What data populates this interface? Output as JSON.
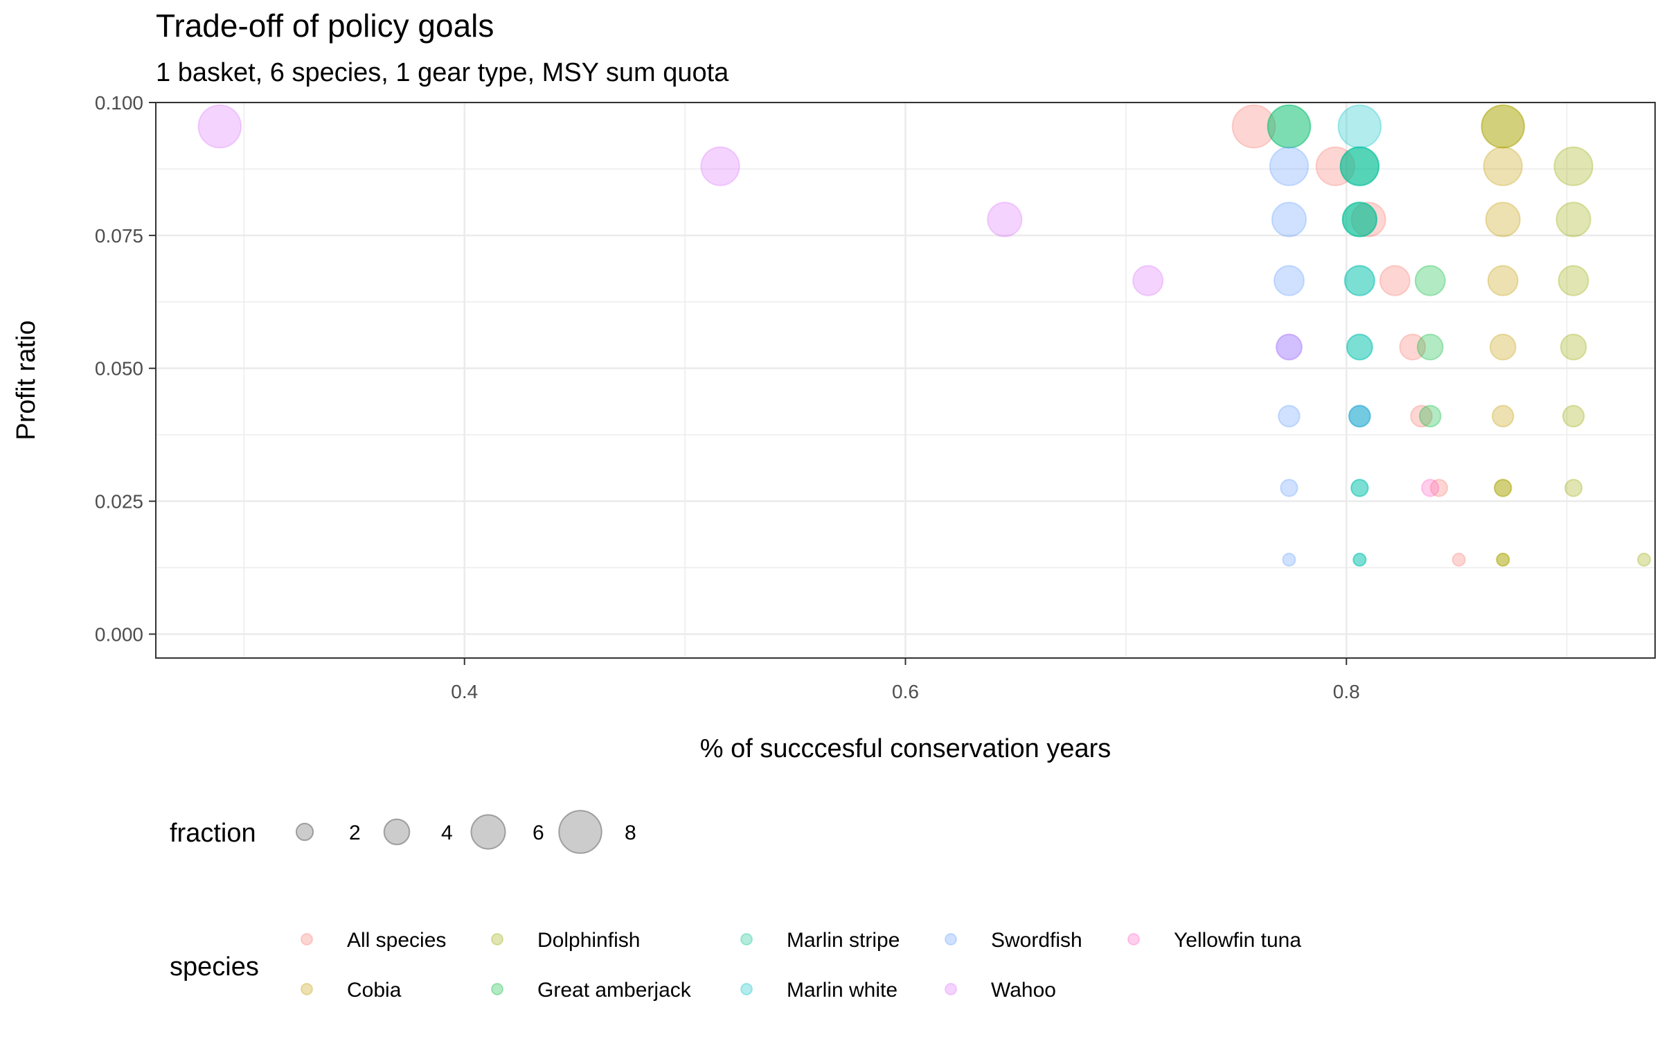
{
  "chart_data": {
    "type": "scatter",
    "title": "Trade-off of policy goals",
    "subtitle": "1 basket, 6 species, 1 gear type, MSY sum quota",
    "xlabel": "% of succcesful conservation years",
    "ylabel": "Profit ratio",
    "xlim": [
      0.26,
      0.94
    ],
    "ylim": [
      -0.0045,
      0.1
    ],
    "x_ticks": [
      0.4,
      0.6,
      0.8
    ],
    "x_tick_labels": [
      "0.4",
      "0.6",
      "0.8"
    ],
    "y_ticks": [
      0.0,
      0.025,
      0.05,
      0.075,
      0.1
    ],
    "y_tick_labels": [
      "0.000",
      "0.025",
      "0.050",
      "0.075",
      "0.100"
    ],
    "grid": true,
    "point_alpha": 0.3,
    "size_legend": {
      "title": "fraction",
      "values": [
        2,
        4,
        6,
        8
      ],
      "labels": [
        "2",
        "4",
        "6",
        "8"
      ]
    },
    "color_legend": {
      "title": "species",
      "placement": "bottom"
    },
    "series": [
      {
        "name": "All species",
        "color": "#F8766D",
        "points": [
          {
            "x": 0.758,
            "y": 0.0955,
            "fraction": 8
          },
          {
            "x": 0.795,
            "y": 0.088,
            "fraction": 7
          },
          {
            "x": 0.81,
            "y": 0.078,
            "fraction": 6
          },
          {
            "x": 0.822,
            "y": 0.0665,
            "fraction": 5
          },
          {
            "x": 0.83,
            "y": 0.054,
            "fraction": 4
          },
          {
            "x": 0.834,
            "y": 0.041,
            "fraction": 3
          },
          {
            "x": 0.842,
            "y": 0.0275,
            "fraction": 2
          },
          {
            "x": 0.851,
            "y": 0.014,
            "fraction": 1
          }
        ]
      },
      {
        "name": "Cobia",
        "color": "#C49A00",
        "points": [
          {
            "x": 0.871,
            "y": 0.0955,
            "fraction": 8
          },
          {
            "x": 0.871,
            "y": 0.088,
            "fraction": 7
          },
          {
            "x": 0.871,
            "y": 0.078,
            "fraction": 6
          },
          {
            "x": 0.871,
            "y": 0.0665,
            "fraction": 5
          },
          {
            "x": 0.871,
            "y": 0.054,
            "fraction": 4
          },
          {
            "x": 0.871,
            "y": 0.041,
            "fraction": 3
          },
          {
            "x": 0.871,
            "y": 0.0275,
            "fraction": 2
          },
          {
            "x": 0.871,
            "y": 0.014,
            "fraction": 1
          }
        ]
      },
      {
        "name": "Dolphinfish",
        "color": "#99A800",
        "points": [
          {
            "x": 0.871,
            "y": 0.0955,
            "fraction": 8
          },
          {
            "x": 0.903,
            "y": 0.088,
            "fraction": 7
          },
          {
            "x": 0.903,
            "y": 0.078,
            "fraction": 6
          },
          {
            "x": 0.903,
            "y": 0.0665,
            "fraction": 5
          },
          {
            "x": 0.903,
            "y": 0.054,
            "fraction": 4
          },
          {
            "x": 0.903,
            "y": 0.041,
            "fraction": 3
          },
          {
            "x": 0.871,
            "y": 0.0275,
            "fraction": 2
          },
          {
            "x": 0.903,
            "y": 0.0275,
            "fraction": 2
          },
          {
            "x": 0.871,
            "y": 0.014,
            "fraction": 1
          },
          {
            "x": 0.935,
            "y": 0.014,
            "fraction": 1
          }
        ]
      },
      {
        "name": "Great amberjack",
        "color": "#00BA38",
        "points": [
          {
            "x": 0.774,
            "y": 0.0955,
            "fraction": 8
          },
          {
            "x": 0.806,
            "y": 0.088,
            "fraction": 7
          },
          {
            "x": 0.806,
            "y": 0.078,
            "fraction": 6
          },
          {
            "x": 0.838,
            "y": 0.0665,
            "fraction": 5
          },
          {
            "x": 0.838,
            "y": 0.054,
            "fraction": 4
          },
          {
            "x": 0.838,
            "y": 0.041,
            "fraction": 3
          }
        ]
      },
      {
        "name": "Marlin stripe",
        "color": "#00C08B",
        "points": [
          {
            "x": 0.774,
            "y": 0.0955,
            "fraction": 8
          },
          {
            "x": 0.806,
            "y": 0.088,
            "fraction": 7
          },
          {
            "x": 0.806,
            "y": 0.078,
            "fraction": 6
          },
          {
            "x": 0.806,
            "y": 0.0665,
            "fraction": 5
          },
          {
            "x": 0.806,
            "y": 0.054,
            "fraction": 4
          },
          {
            "x": 0.806,
            "y": 0.041,
            "fraction": 3
          },
          {
            "x": 0.806,
            "y": 0.0275,
            "fraction": 2
          },
          {
            "x": 0.806,
            "y": 0.014,
            "fraction": 1
          }
        ]
      },
      {
        "name": "Marlin white",
        "color": "#00BFC4",
        "points": [
          {
            "x": 0.806,
            "y": 0.0955,
            "fraction": 8
          },
          {
            "x": 0.806,
            "y": 0.088,
            "fraction": 7
          },
          {
            "x": 0.806,
            "y": 0.078,
            "fraction": 6
          },
          {
            "x": 0.806,
            "y": 0.0665,
            "fraction": 5
          },
          {
            "x": 0.806,
            "y": 0.054,
            "fraction": 4
          },
          {
            "x": 0.806,
            "y": 0.041,
            "fraction": 3
          },
          {
            "x": 0.806,
            "y": 0.0275,
            "fraction": 2
          },
          {
            "x": 0.806,
            "y": 0.014,
            "fraction": 1
          }
        ]
      },
      {
        "name": "Swordfish",
        "color": "#619CFF",
        "points": [
          {
            "x": 0.774,
            "y": 0.088,
            "fraction": 7
          },
          {
            "x": 0.774,
            "y": 0.078,
            "fraction": 6
          },
          {
            "x": 0.774,
            "y": 0.0665,
            "fraction": 5
          },
          {
            "x": 0.774,
            "y": 0.054,
            "fraction": 4
          },
          {
            "x": 0.774,
            "y": 0.041,
            "fraction": 3
          },
          {
            "x": 0.806,
            "y": 0.041,
            "fraction": 3
          },
          {
            "x": 0.774,
            "y": 0.0275,
            "fraction": 2
          },
          {
            "x": 0.774,
            "y": 0.014,
            "fraction": 1
          }
        ]
      },
      {
        "name": "Wahoo",
        "color": "#DB72FB",
        "points": [
          {
            "x": 0.289,
            "y": 0.0955,
            "fraction": 8
          },
          {
            "x": 0.516,
            "y": 0.088,
            "fraction": 7
          },
          {
            "x": 0.645,
            "y": 0.078,
            "fraction": 6
          },
          {
            "x": 0.71,
            "y": 0.0665,
            "fraction": 5
          },
          {
            "x": 0.774,
            "y": 0.054,
            "fraction": 4
          }
        ]
      },
      {
        "name": "Yellowfin tuna",
        "color": "#FF61C3",
        "points": [
          {
            "x": 0.838,
            "y": 0.0275,
            "fraction": 2
          }
        ]
      }
    ]
  }
}
